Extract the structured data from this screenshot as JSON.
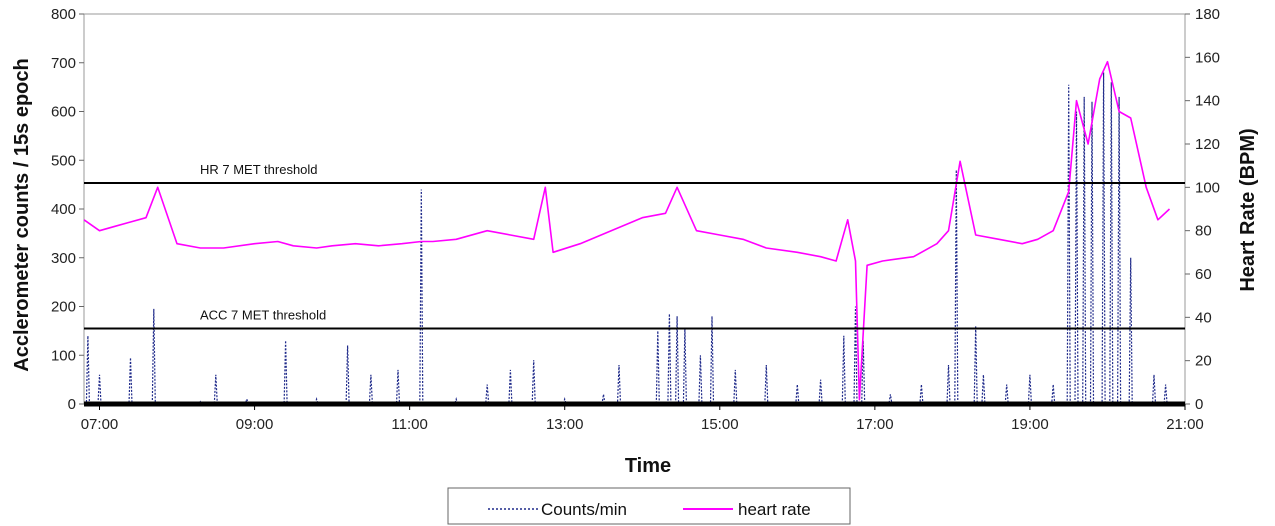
{
  "chart_data": {
    "type": "line",
    "xlabel": "Time",
    "ylabel_left": "Acclerometer counts / 15s epoch",
    "ylabel_right": "Heart Rate (BPM)",
    "xlim_hours": [
      6.8,
      21.0
    ],
    "x_ticks": [
      "07:00",
      "09:00",
      "11:00",
      "13:00",
      "15:00",
      "17:00",
      "19:00",
      "21:00"
    ],
    "y_left": {
      "min": 0,
      "max": 800,
      "ticks": [
        0,
        100,
        200,
        300,
        400,
        500,
        600,
        700,
        800
      ]
    },
    "y_right": {
      "min": 0,
      "max": 180,
      "ticks": [
        0,
        20,
        40,
        60,
        80,
        100,
        120,
        140,
        160,
        180
      ]
    },
    "thresholds": [
      {
        "label": "HR 7 MET threshold",
        "axis": "right",
        "value": 102
      },
      {
        "label": "ACC 7 MET threshold",
        "axis": "left",
        "value": 155
      }
    ],
    "legend": {
      "position": "bottom",
      "entries": [
        "Counts/min",
        "heart rate"
      ]
    },
    "colors": {
      "counts": "#1f2a8a",
      "heart_rate": "#ff00ff",
      "threshold": "#000000"
    },
    "series": [
      {
        "name": "heart rate",
        "axis": "right",
        "x_hours": [
          6.8,
          7.0,
          7.2,
          7.4,
          7.6,
          7.75,
          8.0,
          8.3,
          8.6,
          9.0,
          9.3,
          9.5,
          9.8,
          10.0,
          10.3,
          10.6,
          10.9,
          11.15,
          11.3,
          11.6,
          12.0,
          12.3,
          12.6,
          12.75,
          12.85,
          13.2,
          13.6,
          14.0,
          14.3,
          14.45,
          14.7,
          15.0,
          15.3,
          15.6,
          16.0,
          16.3,
          16.5,
          16.65,
          16.75,
          16.8,
          16.9,
          17.1,
          17.5,
          17.8,
          17.95,
          18.1,
          18.3,
          18.6,
          18.9,
          19.1,
          19.3,
          19.5,
          19.6,
          19.75,
          19.9,
          20.0,
          20.15,
          20.3,
          20.5,
          20.65,
          20.8
        ],
        "values": [
          85,
          80,
          82,
          84,
          86,
          100,
          74,
          72,
          72,
          74,
          75,
          73,
          72,
          73,
          74,
          73,
          74,
          75,
          75,
          76,
          80,
          78,
          76,
          100,
          70,
          74,
          80,
          86,
          88,
          100,
          80,
          78,
          76,
          72,
          70,
          68,
          66,
          85,
          66,
          2,
          64,
          66,
          68,
          74,
          80,
          112,
          78,
          76,
          74,
          76,
          80,
          98,
          140,
          120,
          150,
          158,
          135,
          132,
          100,
          85,
          90
        ]
      },
      {
        "name": "Counts/min",
        "axis": "left",
        "x_hours": [
          6.85,
          7.0,
          7.4,
          7.7,
          8.3,
          8.5,
          8.9,
          9.4,
          9.8,
          10.2,
          10.5,
          10.85,
          11.15,
          11.6,
          12.0,
          12.3,
          12.6,
          13.0,
          13.5,
          13.7,
          14.2,
          14.35,
          14.45,
          14.55,
          14.75,
          14.9,
          15.2,
          15.6,
          16.0,
          16.3,
          16.6,
          16.75,
          16.85,
          17.2,
          17.6,
          17.95,
          18.05,
          18.3,
          18.4,
          18.7,
          19.0,
          19.3,
          19.5,
          19.6,
          19.7,
          19.8,
          19.95,
          20.05,
          20.15,
          20.3,
          20.6,
          20.75
        ],
        "values": [
          140,
          60,
          95,
          195,
          5,
          60,
          10,
          130,
          10,
          120,
          60,
          70,
          440,
          10,
          40,
          70,
          90,
          10,
          20,
          80,
          150,
          185,
          180,
          155,
          100,
          180,
          70,
          80,
          40,
          50,
          140,
          200,
          130,
          20,
          40,
          80,
          480,
          160,
          60,
          40,
          60,
          40,
          655,
          600,
          630,
          620,
          680,
          660,
          630,
          300,
          60,
          40
        ]
      }
    ]
  }
}
